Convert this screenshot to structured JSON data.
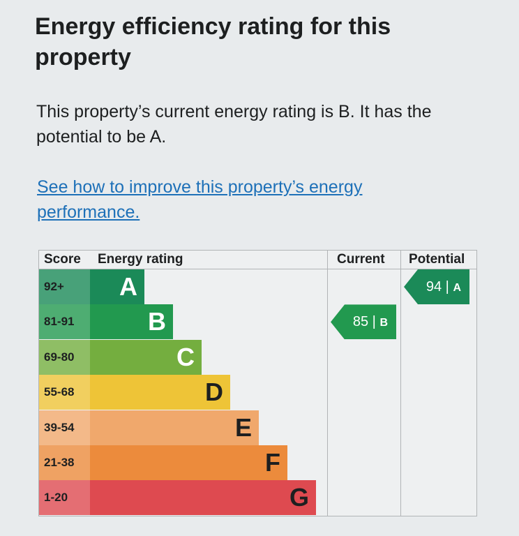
{
  "header": {
    "title": "Energy efficiency rating for this property"
  },
  "summary": "This property’s current energy rating is B. It has the potential to be A.",
  "link": "See how to improve this property’s energy performance.",
  "table": {
    "columns": [
      "Score",
      "Energy rating",
      "Current",
      "Potential"
    ],
    "rows": [
      {
        "score": "92+",
        "rating": "A",
        "color": "#1b8a58"
      },
      {
        "score": "81-91",
        "rating": "B",
        "color": "#22994f"
      },
      {
        "score": "69-80",
        "rating": "C",
        "color": "#74ae3f"
      },
      {
        "score": "55-68",
        "rating": "D",
        "color": "#eec437"
      },
      {
        "score": "39-54",
        "rating": "E",
        "color": "#f0a86c"
      },
      {
        "score": "21-38",
        "rating": "F",
        "color": "#ec8b3c"
      },
      {
        "score": "1-20",
        "rating": "G",
        "color": "#de4a50"
      }
    ],
    "current": {
      "score": 85,
      "band": "B",
      "color": "#22994f"
    },
    "potential": {
      "score": 94,
      "band": "A",
      "color": "#1b8a58"
    }
  }
}
